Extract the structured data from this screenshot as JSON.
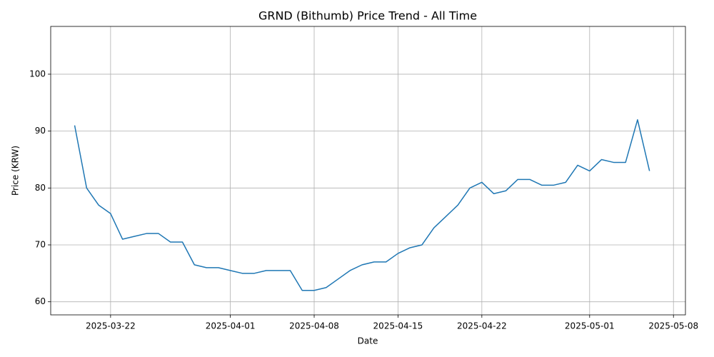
{
  "chart_data": {
    "type": "line",
    "title": "GRND (Bithumb) Price Trend - All Time",
    "xlabel": "Date",
    "ylabel": "Price (KRW)",
    "x": [
      "2025-03-19",
      "2025-03-20",
      "2025-03-21",
      "2025-03-22",
      "2025-03-23",
      "2025-03-24",
      "2025-03-25",
      "2025-03-26",
      "2025-03-27",
      "2025-03-28",
      "2025-03-29",
      "2025-03-30",
      "2025-03-31",
      "2025-04-01",
      "2025-04-02",
      "2025-04-03",
      "2025-04-04",
      "2025-04-05",
      "2025-04-06",
      "2025-04-07",
      "2025-04-08",
      "2025-04-09",
      "2025-04-10",
      "2025-04-11",
      "2025-04-12",
      "2025-04-13",
      "2025-04-14",
      "2025-04-15",
      "2025-04-16",
      "2025-04-17",
      "2025-04-18",
      "2025-04-19",
      "2025-04-20",
      "2025-04-21",
      "2025-04-22",
      "2025-04-23",
      "2025-04-24",
      "2025-04-25",
      "2025-04-26",
      "2025-04-27",
      "2025-04-28",
      "2025-04-29",
      "2025-04-30",
      "2025-05-01",
      "2025-05-02",
      "2025-05-03",
      "2025-05-04",
      "2025-05-05",
      "2025-05-06"
    ],
    "series": [
      {
        "name": "Price",
        "color": "#1f77b4",
        "values": [
          91,
          80,
          77,
          75.5,
          71,
          71.5,
          72,
          72,
          70.5,
          70.5,
          66.5,
          66,
          66,
          65.5,
          65,
          65,
          65.5,
          65.5,
          65.5,
          62,
          62,
          62.5,
          64,
          65.5,
          66.5,
          67,
          67,
          68.5,
          69.5,
          70,
          73,
          75,
          77,
          80,
          81,
          79,
          79.5,
          81.5,
          81.5,
          80.5,
          80.5,
          81,
          84,
          83,
          85,
          84.5,
          84.5,
          92,
          83
        ]
      }
    ],
    "xlim": [
      "2025-03-17",
      "2025-05-09"
    ],
    "xticks": [
      "2025-03-22",
      "2025-04-01",
      "2025-04-08",
      "2025-04-15",
      "2025-04-22",
      "2025-05-01",
      "2025-05-08"
    ],
    "ylim": [
      57.7,
      108.4
    ],
    "yticks": [
      60,
      70,
      80,
      90,
      100
    ],
    "grid": true
  }
}
